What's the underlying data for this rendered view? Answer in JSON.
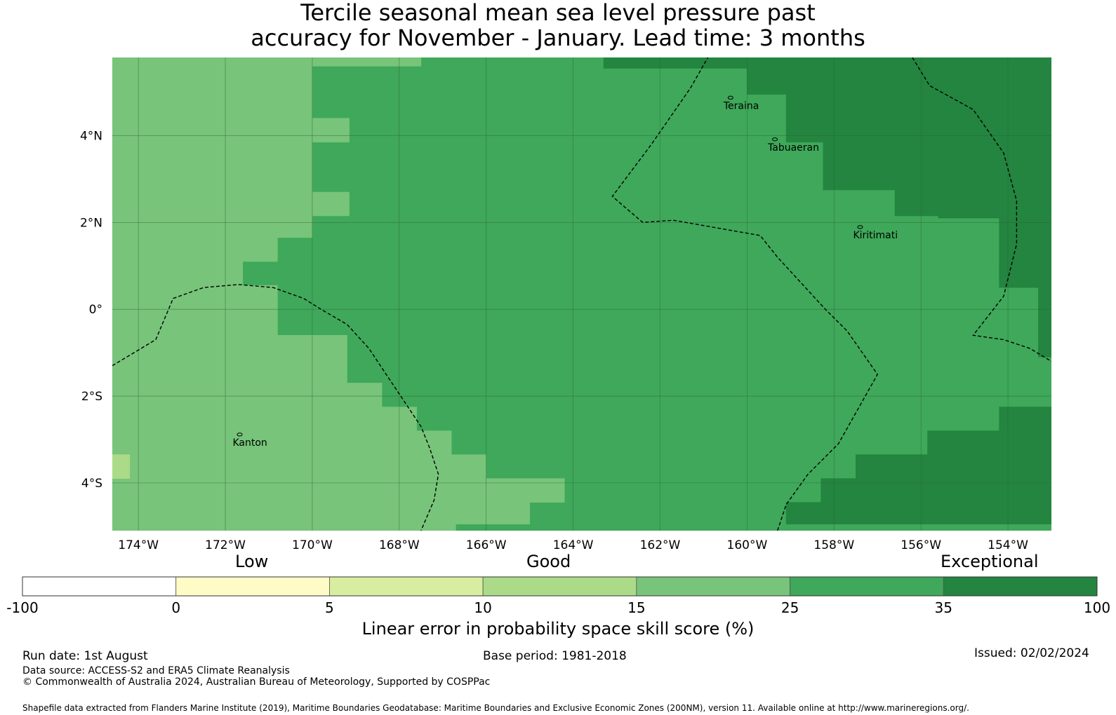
{
  "title": {
    "line1": "Tercile seasonal mean sea level pressure past",
    "line2": "accuracy for November - January. Lead time: 3 months"
  },
  "map": {
    "lon_range": [
      -174.6,
      -153.0
    ],
    "lat_range": [
      -5.1,
      5.8
    ],
    "lon_ticks": [
      {
        "value": -174,
        "label": "174°W"
      },
      {
        "value": -172,
        "label": "172°W"
      },
      {
        "value": -170,
        "label": "170°W"
      },
      {
        "value": -168,
        "label": "168°W"
      },
      {
        "value": -166,
        "label": "166°W"
      },
      {
        "value": -164,
        "label": "164°W"
      },
      {
        "value": -162,
        "label": "162°W"
      },
      {
        "value": -160,
        "label": "160°W"
      },
      {
        "value": -158,
        "label": "158°W"
      },
      {
        "value": -156,
        "label": "156°W"
      },
      {
        "value": -154,
        "label": "154°W"
      }
    ],
    "lat_ticks": [
      {
        "value": 4,
        "label": "4°N"
      },
      {
        "value": 2,
        "label": "2°N"
      },
      {
        "value": 0,
        "label": "0°"
      },
      {
        "value": -2,
        "label": "2°S"
      },
      {
        "value": -4,
        "label": "4°S"
      }
    ],
    "places": [
      {
        "name": "Teraina",
        "label": "Teraina",
        "lon": -160.38,
        "lat": 4.68
      },
      {
        "name": "Tabuaeran",
        "label": "Tabuaeran",
        "lon": -159.36,
        "lat": 3.72
      },
      {
        "name": "Kiritimati",
        "label": "Kiritimati",
        "lon": -157.4,
        "lat": 1.7
      },
      {
        "name": "Kanton",
        "label": "Kanton",
        "lon": -171.67,
        "lat": -3.08
      }
    ],
    "skill_regions": [
      {
        "category": 4,
        "polygon": [
          [
            -174.6,
            5.8
          ],
          [
            -174.6,
            -5.1
          ],
          [
            -166.7,
            -5.1
          ],
          [
            -166.7,
            -4.95
          ],
          [
            -165.0,
            -4.95
          ],
          [
            -165.0,
            -4.45
          ],
          [
            -164.2,
            -4.45
          ],
          [
            -164.2,
            -3.9
          ],
          [
            -166.0,
            -3.9
          ],
          [
            -166.0,
            -3.35
          ],
          [
            -166.8,
            -3.35
          ],
          [
            -166.8,
            -2.8
          ],
          [
            -167.6,
            -2.8
          ],
          [
            -167.6,
            -2.25
          ],
          [
            -168.4,
            -2.25
          ],
          [
            -168.4,
            -1.7
          ],
          [
            -169.2,
            -1.7
          ],
          [
            -169.2,
            -0.6
          ],
          [
            -170.8,
            -0.6
          ],
          [
            -170.8,
            0.55
          ],
          [
            -171.6,
            0.55
          ],
          [
            -171.6,
            1.1
          ],
          [
            -170.8,
            1.1
          ],
          [
            -170.8,
            1.65
          ],
          [
            -170.0,
            1.65
          ],
          [
            -170.0,
            5.6
          ],
          [
            -167.5,
            5.6
          ],
          [
            -167.5,
            5.8
          ]
        ]
      },
      {
        "category": 3,
        "polygon": [
          [
            -174.6,
            -3.35
          ],
          [
            -174.2,
            -3.35
          ],
          [
            -174.2,
            -3.9
          ],
          [
            -174.6,
            -3.9
          ]
        ]
      },
      {
        "category": 4,
        "polygon": [
          [
            -170.0,
            4.4
          ],
          [
            -169.15,
            4.4
          ],
          [
            -169.15,
            3.85
          ],
          [
            -170.0,
            3.85
          ]
        ]
      },
      {
        "category": 4,
        "polygon": [
          [
            -170.0,
            2.7
          ],
          [
            -169.15,
            2.7
          ],
          [
            -169.15,
            2.15
          ],
          [
            -170.0,
            2.15
          ]
        ]
      },
      {
        "category": 6,
        "polygon": [
          [
            -163.3,
            5.8
          ],
          [
            -153.0,
            5.8
          ],
          [
            -153.0,
            -1.1
          ],
          [
            -153.3,
            -1.1
          ],
          [
            -153.3,
            0.5
          ],
          [
            -154.2,
            0.5
          ],
          [
            -154.2,
            2.1
          ],
          [
            -155.6,
            2.1
          ],
          [
            -155.6,
            2.15
          ],
          [
            -156.6,
            2.15
          ],
          [
            -156.6,
            2.75
          ],
          [
            -158.25,
            2.75
          ],
          [
            -158.25,
            3.85
          ],
          [
            -159.1,
            3.85
          ],
          [
            -159.1,
            4.95
          ],
          [
            -160.0,
            4.95
          ],
          [
            -160.0,
            5.55
          ],
          [
            -163.3,
            5.55
          ]
        ]
      },
      {
        "category": 6,
        "polygon": [
          [
            -154.2,
            0.55
          ],
          [
            -153.3,
            0.55
          ],
          [
            -153.3,
            1.1
          ],
          [
            -154.2,
            1.1
          ]
        ]
      },
      {
        "category": 6,
        "polygon": [
          [
            -159.1,
            -4.95
          ],
          [
            -153.0,
            -4.95
          ],
          [
            -153.0,
            -2.25
          ],
          [
            -154.2,
            -2.25
          ],
          [
            -154.2,
            -2.8
          ],
          [
            -155.85,
            -2.8
          ],
          [
            -155.85,
            -3.35
          ],
          [
            -157.5,
            -3.35
          ],
          [
            -157.5,
            -3.9
          ],
          [
            -158.3,
            -3.9
          ],
          [
            -158.3,
            -4.45
          ],
          [
            -159.1,
            -4.45
          ]
        ]
      }
    ],
    "dashed_lines": [
      [
        [
          -174.6,
          -1.3
        ],
        [
          -173.6,
          -0.7
        ],
        [
          -173.2,
          0.25
        ],
        [
          -172.5,
          0.5
        ],
        [
          -171.7,
          0.57
        ],
        [
          -170.9,
          0.5
        ],
        [
          -170.2,
          0.25
        ],
        [
          -169.8,
          0.0
        ],
        [
          -169.2,
          -0.35
        ],
        [
          -168.7,
          -0.9
        ],
        [
          -168.3,
          -1.5
        ],
        [
          -167.9,
          -2.1
        ],
        [
          -167.5,
          -2.7
        ],
        [
          -167.3,
          -3.2
        ],
        [
          -167.1,
          -3.8
        ],
        [
          -167.2,
          -4.4
        ],
        [
          -167.5,
          -5.1
        ]
      ],
      [
        [
          -159.3,
          -5.1
        ],
        [
          -159.1,
          -4.5
        ],
        [
          -158.6,
          -3.8
        ],
        [
          -157.9,
          -3.1
        ],
        [
          -157.0,
          -1.5
        ],
        [
          -157.7,
          -0.5
        ],
        [
          -158.2,
          0.0
        ],
        [
          -159.3,
          1.2
        ],
        [
          -159.7,
          1.7
        ],
        [
          -161.7,
          2.05
        ],
        [
          -162.4,
          2.0
        ],
        [
          -163.1,
          2.6
        ],
        [
          -162.2,
          3.8
        ],
        [
          -161.3,
          5.1
        ],
        [
          -160.9,
          5.8
        ]
      ],
      [
        [
          -156.2,
          5.8
        ],
        [
          -155.8,
          5.15
        ],
        [
          -154.8,
          4.6
        ],
        [
          -154.1,
          3.6
        ],
        [
          -153.8,
          2.5
        ],
        [
          -153.8,
          1.5
        ],
        [
          -154.1,
          0.3
        ],
        [
          -154.8,
          -0.6
        ],
        [
          -154.1,
          -0.7
        ],
        [
          -153.5,
          -0.9
        ],
        [
          -153.0,
          -1.2
        ]
      ]
    ]
  },
  "colorbar": {
    "words": {
      "low": "Low",
      "good": "Good",
      "exceptional": "Exceptional"
    },
    "tick_labels": [
      "-100",
      "0",
      "5",
      "10",
      "15",
      "25",
      "35",
      "100"
    ],
    "colors": [
      "#ffffff",
      "#fefbc7",
      "#d8ed9f",
      "#abdb88",
      "#77c47a",
      "#3fa85a",
      "#23853f"
    ],
    "label": "Linear error in probability space skill score (%)"
  },
  "footer": {
    "run_date": "Run date: 1st August",
    "base_period": "Base period: 1981-2018",
    "issued": "Issued: 02/02/2024",
    "data_source": "Data source: ACCESS-S2 and ERA5 Climate Reanalysis",
    "copyright": "© Commonwealth of Australia 2024, Australian Bureau of Meteorology, Supported by COSPPac",
    "shapefile": "Shapefile data extracted from Flanders Marine Institute (2019), Maritime Boundaries Geodatabase: Maritime Boundaries and Exclusive Economic Zones (200NM), version 11. Available online at http://www.marineregions.org/."
  }
}
